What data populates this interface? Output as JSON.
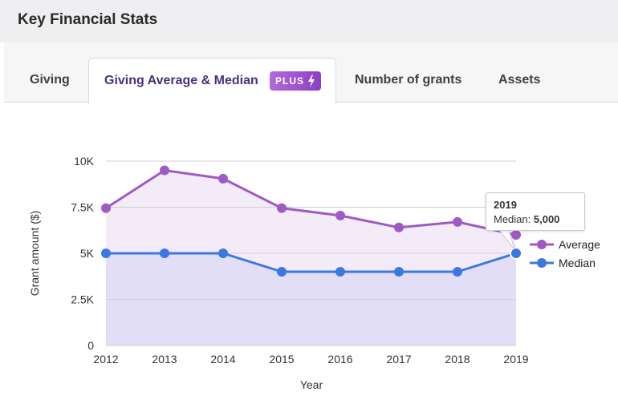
{
  "header": {
    "title": "Key Financial Stats"
  },
  "tabs": [
    {
      "label": "Giving"
    },
    {
      "label": "Giving Average & Median",
      "badge": "PLUS"
    },
    {
      "label": "Number of grants"
    },
    {
      "label": "Assets"
    }
  ],
  "colors": {
    "average": "#a05ac3",
    "median": "#3c78e0",
    "average_fill": "#f3ecf8",
    "median_fill": "#e1def5",
    "grid": "#cfcfd6"
  },
  "tooltip": {
    "year": "2019",
    "label": "Median:",
    "value": "5,000"
  },
  "chart_data": {
    "type": "line",
    "xlabel": "Year",
    "ylabel": "Grant amount ($)",
    "categories": [
      "2012",
      "2013",
      "2014",
      "2015",
      "2016",
      "2017",
      "2018",
      "2019"
    ],
    "yticks": [
      0,
      2500,
      5000,
      7500,
      10000
    ],
    "ytick_labels": [
      "0",
      "2.5K",
      "5K",
      "7.5K",
      "10K"
    ],
    "ylim": [
      0,
      10000
    ],
    "series": [
      {
        "name": "Average",
        "values": [
          7450,
          9500,
          9050,
          7450,
          7050,
          6400,
          6700,
          6000
        ]
      },
      {
        "name": "Median",
        "values": [
          5000,
          5000,
          5000,
          4000,
          4000,
          4000,
          4000,
          5000
        ]
      }
    ],
    "legend": [
      "Average",
      "Median"
    ],
    "legend_position": "right"
  }
}
